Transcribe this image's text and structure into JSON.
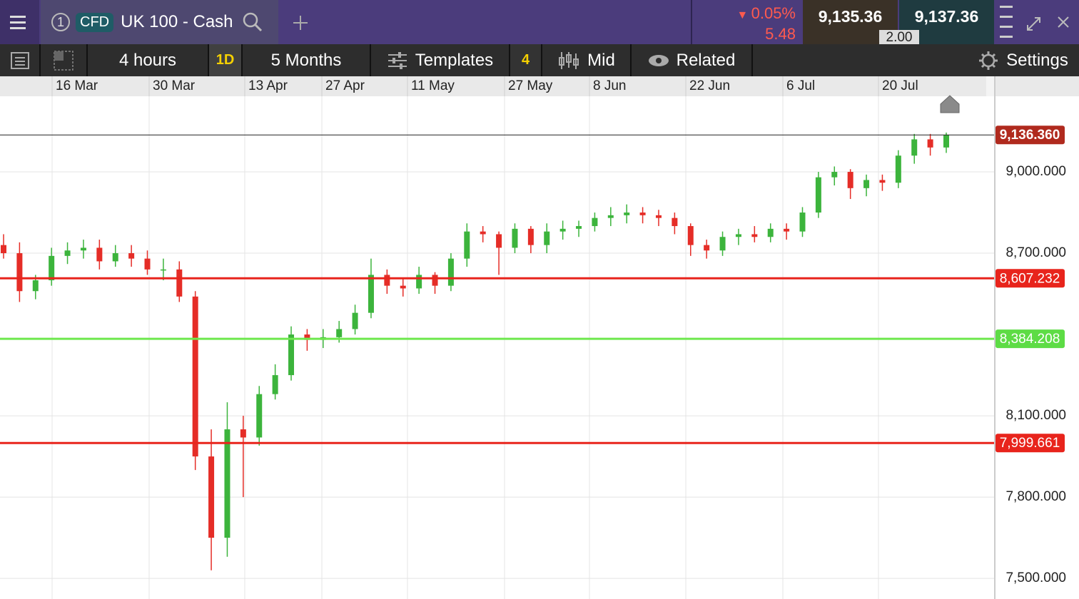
{
  "header": {
    "tab_number": "1",
    "badge": "CFD",
    "instrument": "UK 100 - Cash",
    "change_pct": "0.05%",
    "change_abs": "5.48",
    "bid": "9,135.36",
    "ask": "9,137.36",
    "spread": "2.00"
  },
  "toolbar": {
    "interval": "4 hours",
    "period_badge": "1D",
    "range": "5 Months",
    "templates": "Templates",
    "template_count": "4",
    "price_mode": "Mid",
    "related": "Related",
    "settings": "Settings"
  },
  "chart_data": {
    "type": "candlestick",
    "up_color": "#3cb43c",
    "down_color": "#e52d27",
    "grid": true,
    "xticks": [
      "16 Mar",
      "30 Mar",
      "13 Apr",
      "27 Apr",
      "11 May",
      "27 May",
      "8 Jun",
      "22 Jun",
      "6 Jul",
      "20 Jul"
    ],
    "ylim": [
      7424,
      9279
    ],
    "yticks": [
      {
        "value": 9000,
        "label": "9,000.000"
      },
      {
        "value": 8700,
        "label": "8,700.000"
      },
      {
        "value": 8100,
        "label": "8,100.000"
      },
      {
        "value": 7800,
        "label": "7,800.000"
      },
      {
        "value": 7500,
        "label": "7,500.000"
      }
    ],
    "price_lines": [
      {
        "value": 9136.36,
        "label": "9,136.360",
        "color": "#222222",
        "label_color": "#b02a1e",
        "width": 1
      },
      {
        "value": 8607.232,
        "label": "8,607.232",
        "color": "#e8241c",
        "label_color": "#e8241c",
        "width": 3
      },
      {
        "value": 8384.208,
        "label": "8,384.208",
        "color": "#6ee84e",
        "label_color": "#5ddc45",
        "width": 3
      },
      {
        "value": 7999.661,
        "label": "7,999.661",
        "color": "#e8241c",
        "label_color": "#e8241c",
        "width": 3
      }
    ],
    "open": [
      8730,
      8700,
      8560,
      8600,
      8690,
      8710,
      8720,
      8670,
      8700,
      8680,
      8640,
      8640,
      8540,
      7950,
      7650,
      8050,
      8020,
      8180,
      8250,
      8400,
      8380,
      8390,
      8420,
      8480,
      8620,
      8580,
      8570,
      8620,
      8580,
      8680,
      8780,
      8770,
      8720,
      8790,
      8730,
      8780,
      8790,
      8800,
      8830,
      8840,
      8850,
      8840,
      8830,
      8800,
      8730,
      8710,
      8760,
      8770,
      8760,
      8790,
      8780,
      8850,
      8980,
      9000,
      8940,
      8970,
      8960,
      9060,
      9120,
      9090
    ],
    "high": [
      8770,
      8740,
      8620,
      8720,
      8740,
      8750,
      8750,
      8730,
      8730,
      8710,
      8680,
      8670,
      8560,
      8050,
      8150,
      8100,
      8210,
      8290,
      8430,
      8420,
      8420,
      8450,
      8510,
      8680,
      8640,
      8610,
      8650,
      8630,
      8700,
      8810,
      8800,
      8780,
      8810,
      8800,
      8810,
      8820,
      8820,
      8850,
      8870,
      8880,
      8870,
      8860,
      8850,
      8810,
      8750,
      8780,
      8790,
      8800,
      8810,
      8810,
      8870,
      9000,
      9020,
      9010,
      8990,
      8990,
      9080,
      9140,
      9140,
      9145
    ],
    "low": [
      8680,
      8520,
      8530,
      8580,
      8660,
      8680,
      8640,
      8650,
      8650,
      8620,
      8600,
      8520,
      7900,
      7530,
      7580,
      7800,
      7990,
      8160,
      8230,
      8340,
      8350,
      8370,
      8400,
      8460,
      8550,
      8540,
      8550,
      8550,
      8560,
      8650,
      8740,
      8620,
      8700,
      8700,
      8700,
      8750,
      8760,
      8780,
      8800,
      8810,
      8810,
      8800,
      8770,
      8690,
      8680,
      8690,
      8730,
      8740,
      8740,
      8750,
      8760,
      8830,
      8950,
      8900,
      8910,
      8930,
      8940,
      9030,
      9060,
      9070
    ],
    "close": [
      8700,
      8560,
      8600,
      8690,
      8710,
      8720,
      8670,
      8700,
      8680,
      8640,
      8640,
      8540,
      7950,
      7650,
      8050,
      8020,
      8180,
      8250,
      8400,
      8380,
      8390,
      8420,
      8480,
      8620,
      8580,
      8570,
      8620,
      8580,
      8680,
      8780,
      8770,
      8720,
      8790,
      8730,
      8780,
      8790,
      8800,
      8830,
      8840,
      8850,
      8840,
      8830,
      8800,
      8730,
      8710,
      8760,
      8770,
      8760,
      8790,
      8780,
      8850,
      8980,
      9000,
      8940,
      8970,
      8960,
      9060,
      9120,
      9090,
      9136
    ]
  }
}
